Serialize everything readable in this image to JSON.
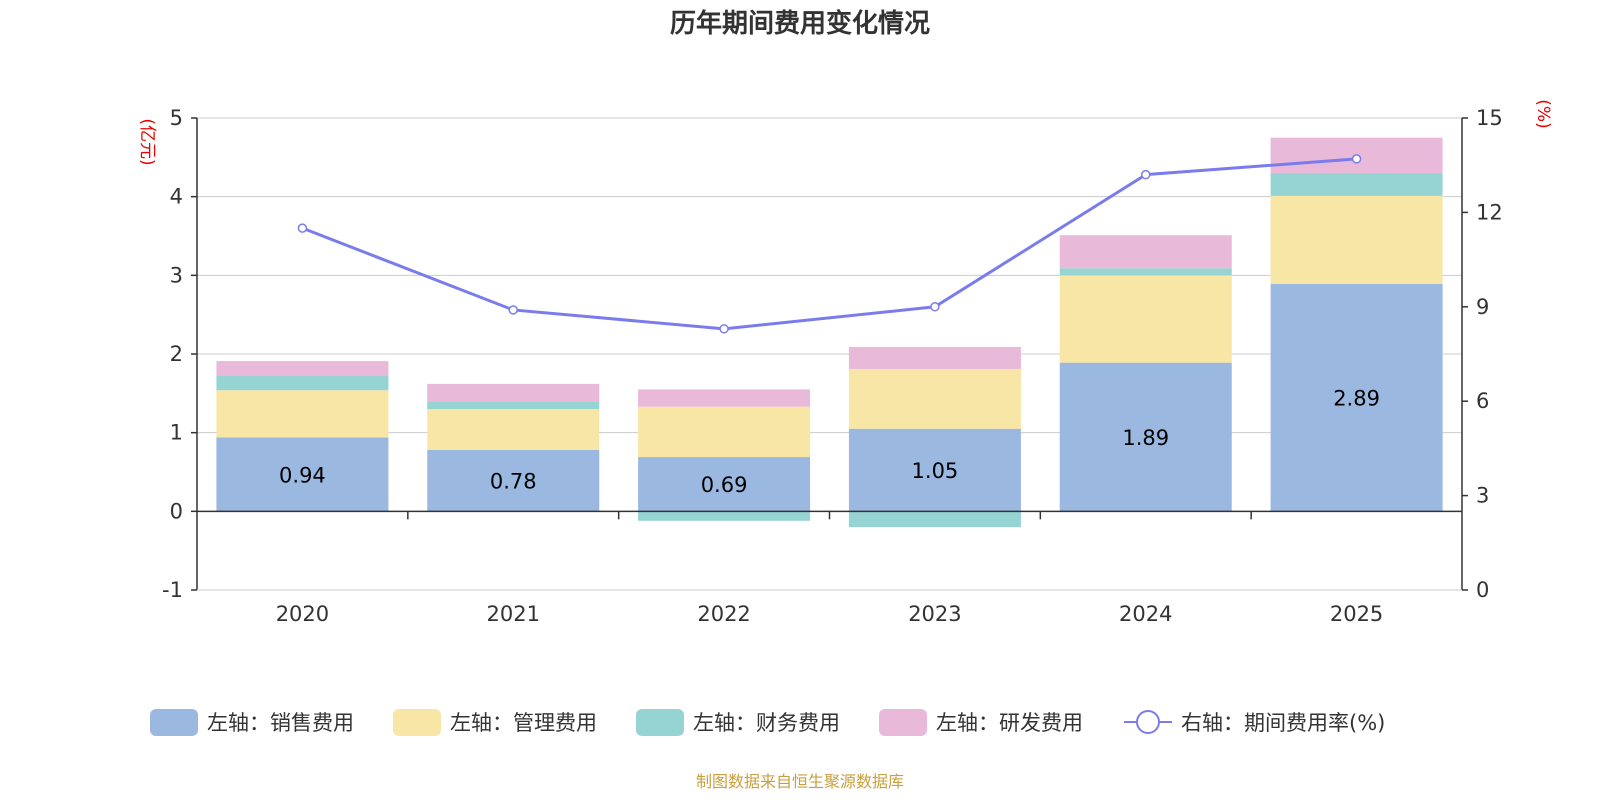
{
  "chart_data": {
    "type": "bar",
    "stacked": true,
    "title": "历年期间费用变化情况",
    "left_axis_unit": "(亿元)",
    "right_axis_unit": "(%)",
    "categories": [
      "2020",
      "2021",
      "2022",
      "2023",
      "2024",
      "2025"
    ],
    "left_axis": {
      "min": -1,
      "max": 5,
      "ticks": [
        "-1",
        "0",
        "1",
        "2",
        "3",
        "4",
        "5"
      ]
    },
    "right_axis": {
      "min": 0,
      "max": 15,
      "ticks": [
        "0",
        "3",
        "6",
        "9",
        "12",
        "15"
      ]
    },
    "series": [
      {
        "name": "左轴：销售费用",
        "color": "#9bb8e1",
        "axis": "left",
        "values": [
          0.94,
          0.78,
          0.69,
          1.05,
          1.89,
          2.89
        ],
        "labels": [
          "0.94",
          "0.78",
          "0.69",
          "1.05",
          "1.89",
          "2.89"
        ]
      },
      {
        "name": "左轴：管理费用",
        "color": "#f8e6a6",
        "axis": "left",
        "values": [
          0.6,
          0.52,
          0.64,
          0.76,
          1.11,
          1.12
        ]
      },
      {
        "name": "左轴：财务费用",
        "color": "#96d3d3",
        "axis": "left",
        "values": [
          0.18,
          0.09,
          -0.12,
          -0.2,
          0.09,
          0.29
        ]
      },
      {
        "name": "左轴：研发费用",
        "color": "#e8b9d9",
        "axis": "left",
        "values": [
          0.19,
          0.23,
          0.22,
          0.28,
          0.42,
          0.45
        ]
      },
      {
        "name": "右轴：期间费用率(%)",
        "color": "#7b7cec",
        "axis": "right",
        "kind": "line",
        "values": [
          11.5,
          8.9,
          8.3,
          9.0,
          13.2,
          13.7
        ]
      }
    ],
    "source": "制图数据来自恒生聚源数据库"
  }
}
